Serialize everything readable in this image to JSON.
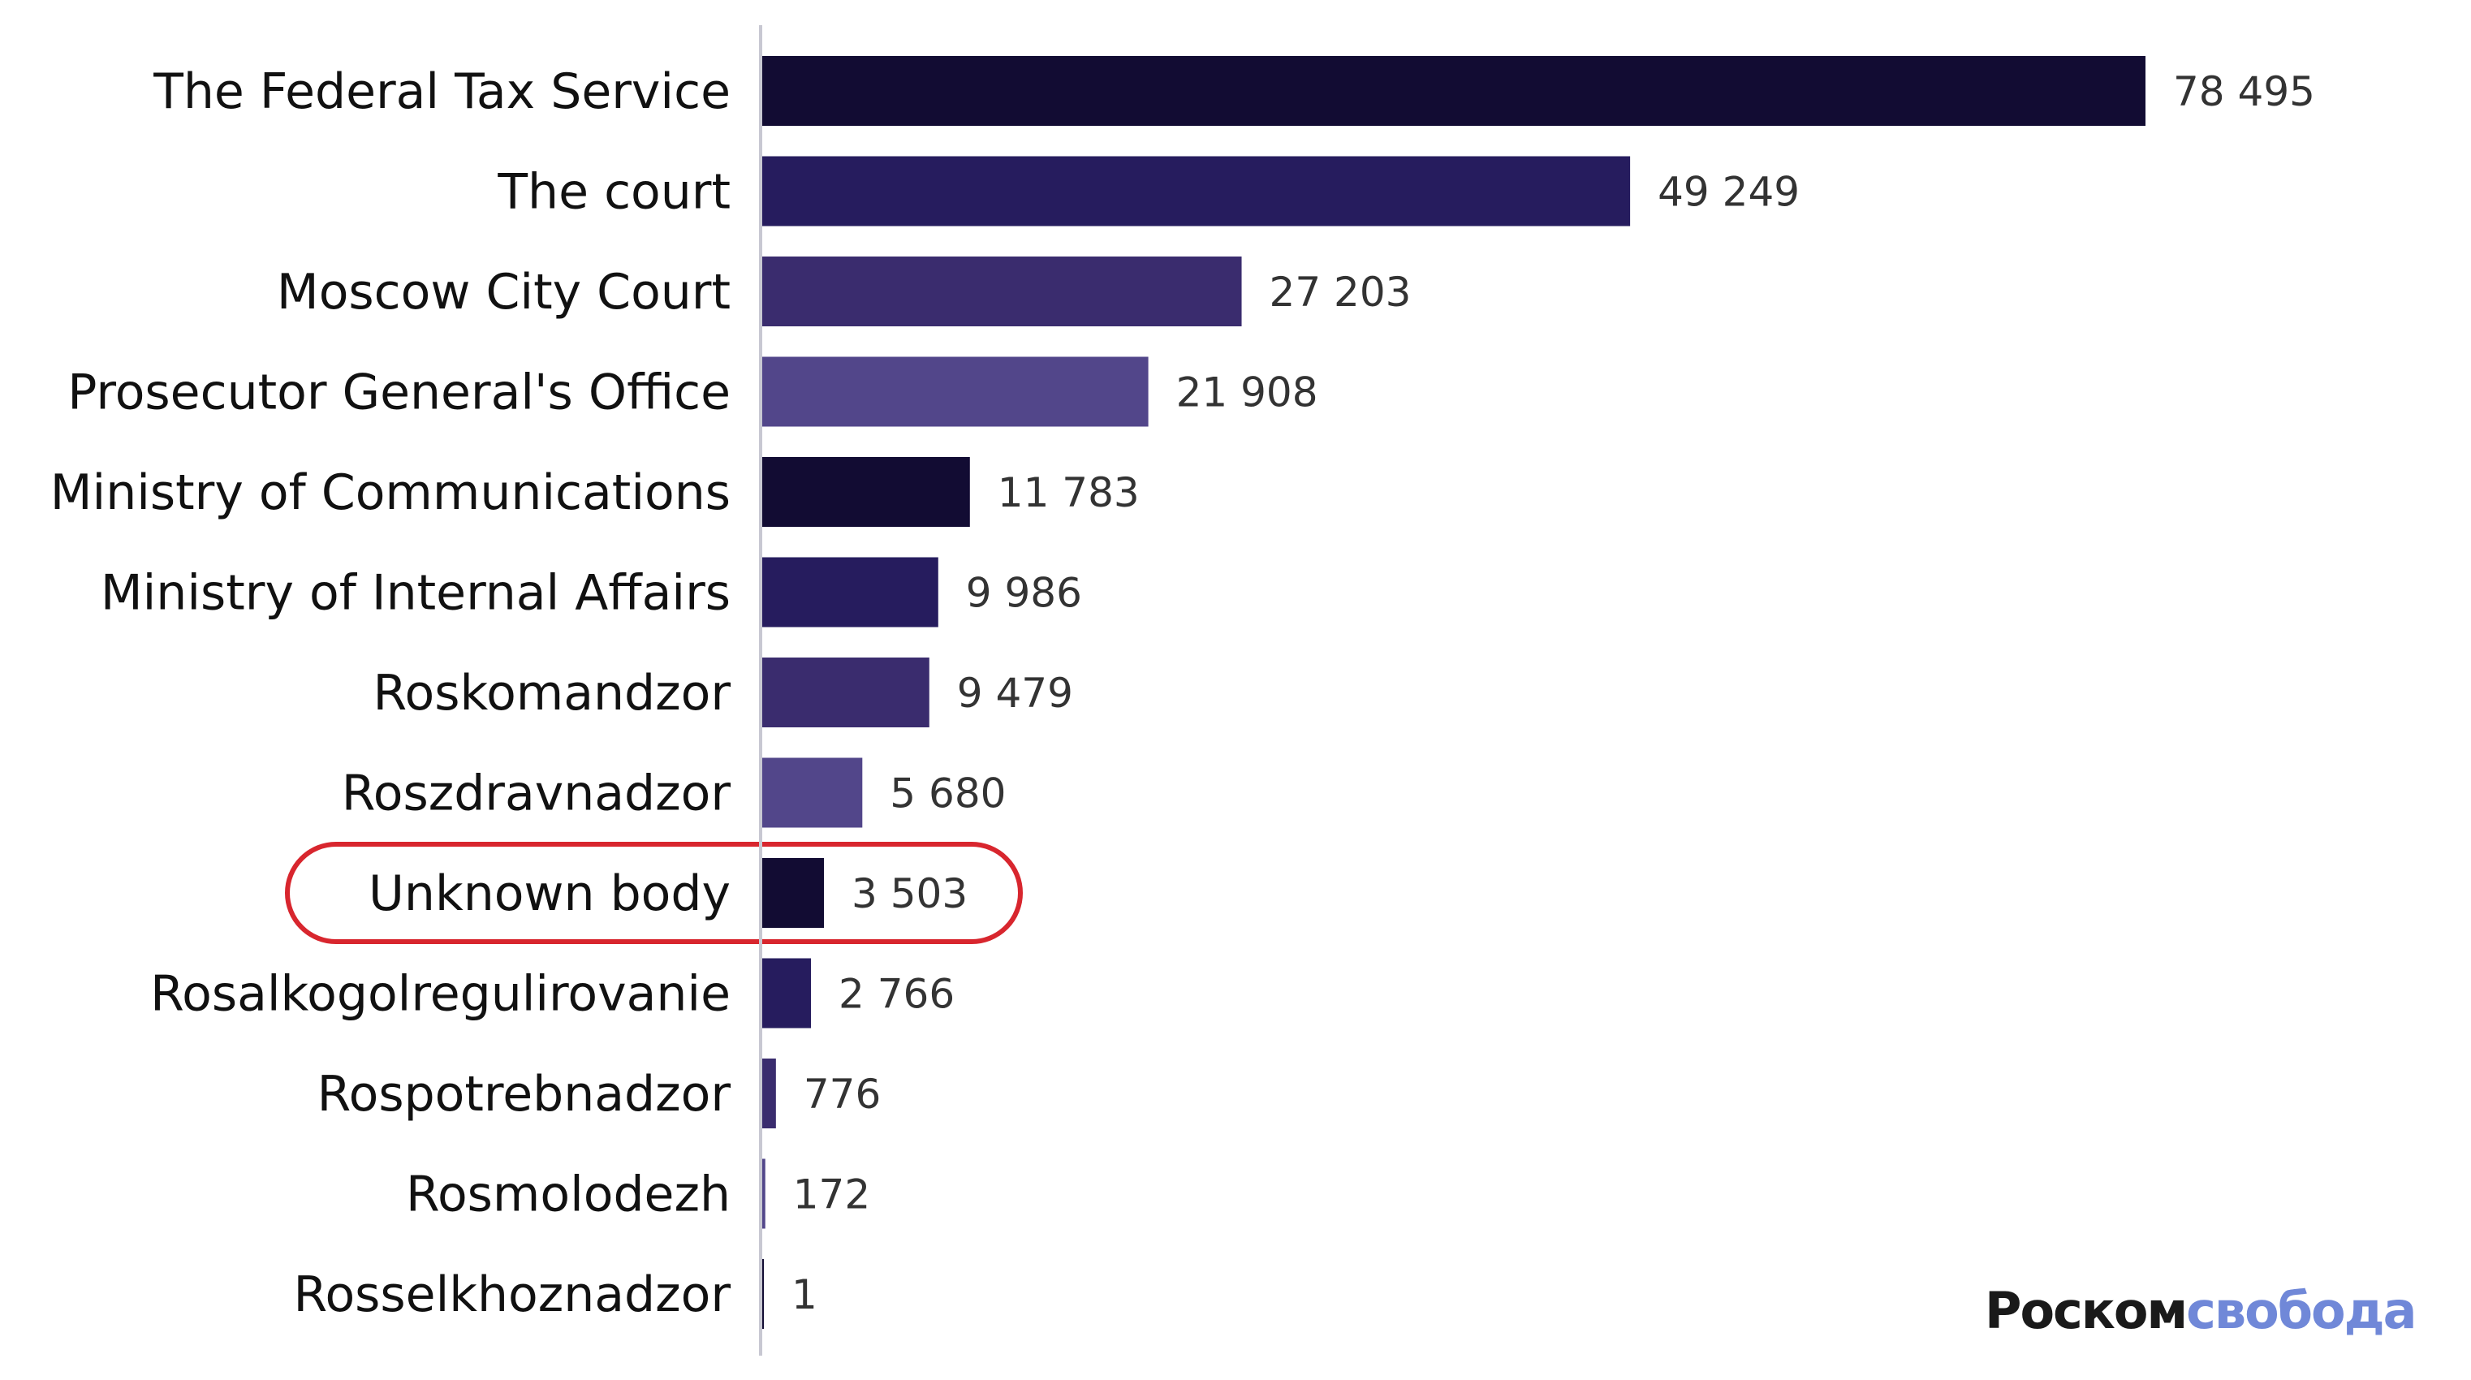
{
  "chart_data": {
    "type": "bar",
    "orientation": "horizontal",
    "categories": [
      "The Federal Tax Service",
      "The court",
      "Moscow City Court",
      "Prosecutor General's Office",
      "Ministry of Communications",
      "Ministry of Internal Affairs",
      "Roskomandzor",
      "Roszdravnadzor",
      "Unknown body",
      "Rosalkogolregulirovanie",
      "Rospotrebnadzor",
      "Rosmolodezh",
      "Rosselkhoznadzor"
    ],
    "values": [
      78495,
      49249,
      27203,
      21908,
      11783,
      9986,
      9479,
      5680,
      3503,
      2766,
      776,
      172,
      1
    ],
    "value_labels": [
      "78 495",
      "49 249",
      "27 203",
      "21 908",
      "11 783",
      "9 986",
      "9 479",
      "5 680",
      "3 503",
      "2 766",
      "776",
      "172",
      "1"
    ],
    "xlim": [
      0,
      78495
    ],
    "grid": false,
    "highlighted_category": "Unknown body",
    "highlight_color": "#d8262e",
    "palette": [
      "#120c33",
      "#261c5e",
      "#3a2c6e",
      "#52468a"
    ]
  },
  "logo": {
    "part1": "Роском",
    "part2": "свобода"
  }
}
